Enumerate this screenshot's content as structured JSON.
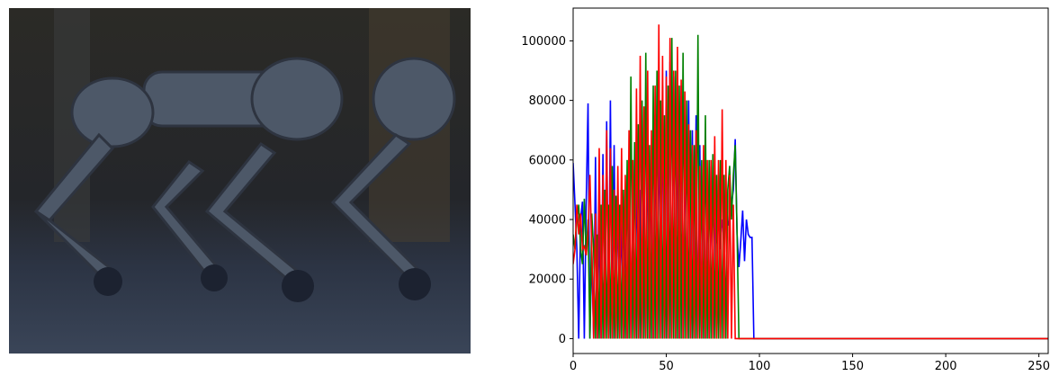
{
  "chart_data": {
    "type": "line",
    "xlim": [
      0,
      255
    ],
    "xticks": [
      0,
      50,
      100,
      150,
      200,
      250
    ],
    "ylim": [
      -5000,
      111000
    ],
    "yticks": [
      0,
      20000,
      40000,
      60000,
      80000,
      100000
    ],
    "x": [
      0,
      1,
      2,
      3,
      4,
      5,
      6,
      7,
      8,
      9,
      10,
      11,
      12,
      13,
      14,
      15,
      16,
      17,
      18,
      19,
      20,
      21,
      22,
      23,
      24,
      25,
      26,
      27,
      28,
      29,
      30,
      31,
      32,
      33,
      34,
      35,
      36,
      37,
      38,
      39,
      40,
      41,
      42,
      43,
      44,
      45,
      46,
      47,
      48,
      49,
      50,
      51,
      52,
      53,
      54,
      55,
      56,
      57,
      58,
      59,
      60,
      61,
      62,
      63,
      64,
      65,
      66,
      67,
      68,
      69,
      70,
      71,
      72,
      73,
      74,
      75,
      76,
      77,
      78,
      79,
      80,
      81,
      82,
      83,
      84,
      85,
      86,
      87,
      88,
      89,
      90,
      91,
      92,
      93,
      94,
      95,
      96,
      97,
      98,
      99,
      100,
      101,
      102,
      103,
      104,
      105,
      106,
      107,
      108,
      109,
      110,
      111,
      112,
      113,
      114,
      115,
      116,
      117,
      118,
      119,
      120,
      121,
      122,
      123,
      124,
      125,
      126,
      127,
      128,
      129,
      130,
      131,
      132,
      133,
      134,
      135,
      136,
      137,
      138,
      139,
      140,
      141,
      142,
      143,
      144,
      145,
      146,
      147,
      148,
      149,
      150,
      151,
      152,
      153,
      154,
      155,
      156,
      157,
      158,
      159,
      160,
      161,
      162,
      163,
      164,
      165,
      166,
      167,
      168,
      169,
      170,
      171,
      172,
      173,
      174,
      175,
      176,
      177,
      178,
      179,
      180,
      181,
      182,
      183,
      184,
      185,
      186,
      187,
      188,
      189,
      190,
      191,
      192,
      193,
      194,
      195,
      196,
      197,
      198,
      199,
      200,
      201,
      202,
      203,
      204,
      205,
      206,
      207,
      208,
      209,
      210,
      211,
      212,
      213,
      214,
      215,
      216,
      217,
      218,
      219,
      220,
      221,
      222,
      223,
      224,
      225,
      226,
      227,
      228,
      229,
      230,
      231,
      232,
      233,
      234,
      235,
      236,
      237,
      238,
      239,
      240,
      241,
      242,
      243,
      244,
      245,
      246,
      247,
      248,
      249,
      250,
      251,
      252,
      253,
      254,
      255
    ],
    "series": [
      {
        "color": "#0000ff",
        "values": [
          59000,
          45000,
          30000,
          0,
          40000,
          46000,
          0,
          45000,
          79000,
          0,
          30000,
          0,
          61000,
          0,
          40000,
          0,
          62000,
          0,
          73000,
          0,
          80000,
          0,
          65000,
          0,
          50000,
          0,
          45000,
          0,
          40000,
          0,
          55000,
          0,
          60000,
          0,
          61000,
          0,
          50000,
          0,
          60000,
          0,
          70000,
          0,
          65000,
          0,
          75000,
          0,
          80000,
          0,
          85000,
          0,
          90000,
          0,
          93000,
          0,
          88000,
          0,
          80000,
          0,
          85000,
          0,
          75000,
          0,
          80000,
          0,
          70000,
          0,
          75000,
          0,
          65000,
          0,
          60000,
          0,
          55000,
          0,
          58000,
          0,
          50000,
          32000,
          45000,
          30000,
          40000,
          35000,
          50000,
          38000,
          40000,
          45000,
          50000,
          67000,
          35000,
          24000,
          33000,
          43000,
          26000,
          40000,
          35000,
          34000,
          34000,
          0,
          0,
          0,
          0,
          0,
          0,
          0,
          0,
          0,
          0,
          0,
          0,
          0,
          0,
          0,
          0,
          0,
          0,
          0,
          0,
          0,
          0,
          0,
          0,
          0,
          0,
          0,
          0,
          0,
          0,
          0,
          0,
          0,
          0,
          0,
          0,
          0,
          0,
          0,
          0,
          0,
          0,
          0,
          0,
          0,
          0,
          0,
          0,
          0,
          0,
          0,
          0,
          0,
          0,
          0,
          0,
          0,
          0,
          0,
          0,
          0,
          0,
          0,
          0,
          0,
          0,
          0,
          0,
          0,
          0,
          0,
          0,
          0,
          0,
          0,
          0,
          0,
          0,
          0,
          0,
          0,
          0,
          0,
          0,
          0,
          0,
          0,
          0,
          0,
          0,
          0,
          0,
          0,
          0,
          0,
          0,
          0,
          0,
          0,
          0,
          0,
          0,
          0,
          0,
          0,
          0,
          0,
          0,
          0,
          0,
          0,
          0,
          0,
          0,
          0,
          0,
          0,
          0,
          0,
          0,
          0,
          0,
          0,
          0,
          0,
          0,
          0,
          0,
          0,
          0,
          0,
          0,
          0,
          0,
          0,
          0,
          0,
          0,
          0,
          0,
          0,
          0,
          0,
          0,
          0,
          0,
          0,
          0,
          0,
          0,
          0,
          0,
          0,
          0,
          0,
          0,
          0,
          0,
          0
        ]
      },
      {
        "color": "#008000",
        "values": [
          35000,
          30000,
          40000,
          45000,
          30000,
          25000,
          47000,
          28000,
          40000,
          0,
          42000,
          30000,
          0,
          35000,
          0,
          45000,
          0,
          50000,
          0,
          45000,
          0,
          58000,
          0,
          48000,
          0,
          45000,
          0,
          50000,
          0,
          60000,
          0,
          88000,
          0,
          66000,
          0,
          72000,
          0,
          80000,
          0,
          96000,
          0,
          65000,
          0,
          85000,
          0,
          90000,
          0,
          80000,
          0,
          75000,
          0,
          85000,
          0,
          101000,
          0,
          90000,
          0,
          85000,
          0,
          96000,
          0,
          80000,
          0,
          70000,
          0,
          65000,
          0,
          102000,
          0,
          60000,
          0,
          75000,
          0,
          60000,
          0,
          62000,
          0,
          55000,
          0,
          60000,
          0,
          55000,
          0,
          50000,
          58000,
          40000,
          55000,
          65000,
          35000,
          0,
          0,
          0,
          0,
          0,
          0,
          0,
          0,
          0,
          0,
          0,
          0,
          0,
          0,
          0,
          0,
          0,
          0,
          0,
          0,
          0,
          0,
          0,
          0,
          0,
          0,
          0,
          0,
          0,
          0,
          0,
          0,
          0,
          0,
          0,
          0,
          0,
          0,
          0,
          0,
          0,
          0,
          0,
          0,
          0,
          0,
          0,
          0,
          0,
          0,
          0,
          0,
          0,
          0,
          0,
          0,
          0,
          0,
          0,
          0,
          0,
          0,
          0,
          0,
          0,
          0,
          0,
          0,
          0,
          0,
          0,
          0,
          0,
          0,
          0,
          0,
          0,
          0,
          0,
          0,
          0,
          0,
          0,
          0,
          0,
          0,
          0,
          0,
          0,
          0,
          0,
          0,
          0,
          0,
          0,
          0,
          0,
          0,
          0,
          0,
          0,
          0,
          0,
          0,
          0,
          0,
          0,
          0,
          0,
          0,
          0,
          0,
          0,
          0,
          0,
          0,
          0,
          0,
          0,
          0,
          0,
          0,
          0,
          0,
          0,
          0,
          0,
          0,
          0,
          0,
          0,
          0,
          0,
          0,
          0,
          0,
          0,
          0,
          0,
          0,
          0,
          0,
          0,
          0,
          0,
          0,
          0,
          0,
          0,
          0,
          0,
          0,
          0,
          0,
          0,
          0,
          0,
          0,
          0,
          0,
          0,
          0,
          0,
          0,
          0,
          0,
          0
        ]
      },
      {
        "color": "#ff0000",
        "values": [
          25000,
          30000,
          45000,
          35000,
          42000,
          30000,
          31000,
          28000,
          35000,
          55000,
          30000,
          0,
          42000,
          0,
          64000,
          0,
          55000,
          0,
          70000,
          0,
          64000,
          0,
          50000,
          0,
          58000,
          0,
          64000,
          0,
          55000,
          0,
          70000,
          0,
          60000,
          0,
          84000,
          0,
          95000,
          0,
          78000,
          0,
          90000,
          0,
          70000,
          0,
          85000,
          0,
          105500,
          0,
          95000,
          0,
          88000,
          0,
          101000,
          0,
          90000,
          0,
          98000,
          0,
          87000,
          0,
          83000,
          0,
          72000,
          0,
          65000,
          0,
          70000,
          0,
          58000,
          0,
          65000,
          0,
          60000,
          0,
          60000,
          0,
          68000,
          0,
          60000,
          0,
          77000,
          0,
          60000,
          0,
          55000,
          0,
          45000,
          0,
          0,
          0,
          0,
          0,
          0,
          0,
          0,
          0,
          0,
          0,
          0,
          0,
          0,
          0,
          0,
          0,
          0,
          0,
          0,
          0,
          0,
          0,
          0,
          0,
          0,
          0,
          0,
          0,
          0,
          0,
          0,
          0,
          0,
          0,
          0,
          0,
          0,
          0,
          0,
          0,
          0,
          0,
          0,
          0,
          0,
          0,
          0,
          0,
          0,
          0,
          0,
          0,
          0,
          0,
          0,
          0,
          0,
          0,
          0,
          0,
          0,
          0,
          0,
          0,
          0,
          0,
          0,
          0,
          0,
          0,
          0,
          0,
          0,
          0,
          0,
          0,
          0,
          0,
          0,
          0,
          0,
          0,
          0,
          0,
          0,
          0,
          0,
          0,
          0,
          0,
          0,
          0,
          0,
          0,
          0,
          0,
          0,
          0,
          0,
          0,
          0,
          0,
          0,
          0,
          0,
          0,
          0,
          0,
          0,
          0,
          0,
          0,
          0,
          0,
          0,
          0,
          0,
          0,
          0,
          0,
          0,
          0,
          0,
          0,
          0,
          0,
          0,
          0,
          0,
          0,
          0,
          0,
          0,
          0,
          0,
          0,
          0,
          0,
          0,
          0,
          0,
          0,
          0,
          0,
          0,
          0,
          0,
          0,
          0,
          0,
          0,
          0,
          0,
          0,
          0,
          0,
          0,
          0,
          0,
          0,
          0,
          0,
          0,
          0,
          0,
          0,
          0,
          0
        ]
      }
    ]
  }
}
